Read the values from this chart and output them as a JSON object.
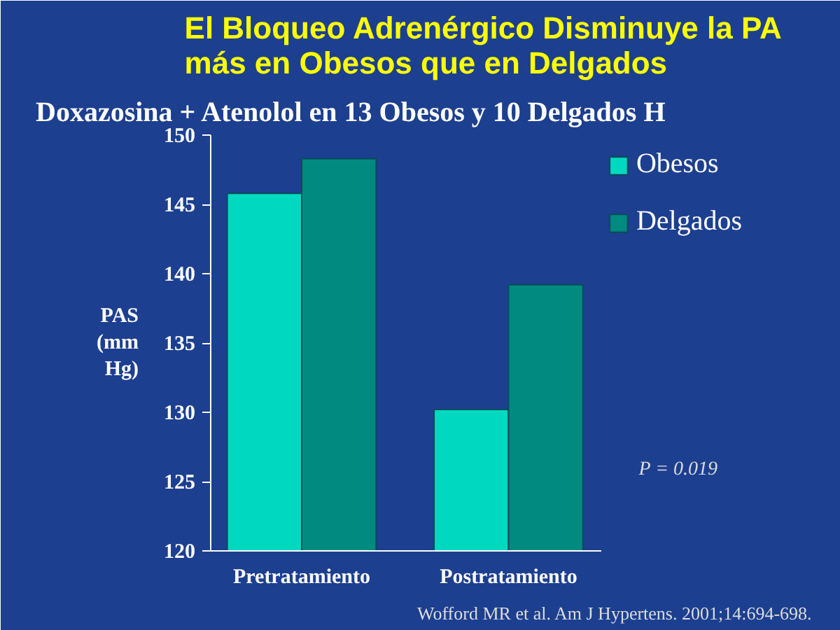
{
  "chart_data": {
    "type": "bar",
    "title": "El Bloqueo Adrenérgico Disminuye la PA más en Obesos que en Delgados",
    "subtitle": "Doxazosina + Atenolol en 13 Obesos y 10 Delgados H",
    "ylabel": "PAS (mm Hg)",
    "categories": [
      "Pretratamiento",
      "Postratamiento"
    ],
    "series": [
      {
        "name": "Obesos",
        "color": "#00d8c0",
        "values": [
          145.8,
          130.2
        ]
      },
      {
        "name": "Delgados",
        "color": "#008a80",
        "values": [
          148.3,
          139.2
        ]
      }
    ],
    "ylim": [
      120,
      150
    ],
    "yticks": [
      120,
      125,
      130,
      135,
      140,
      145,
      150
    ],
    "grid": false,
    "legend": "top right",
    "annotations": [
      "P = 0.019",
      "Wofford MR et al. Am J Hypertens. 2001;14:694-698."
    ]
  }
}
